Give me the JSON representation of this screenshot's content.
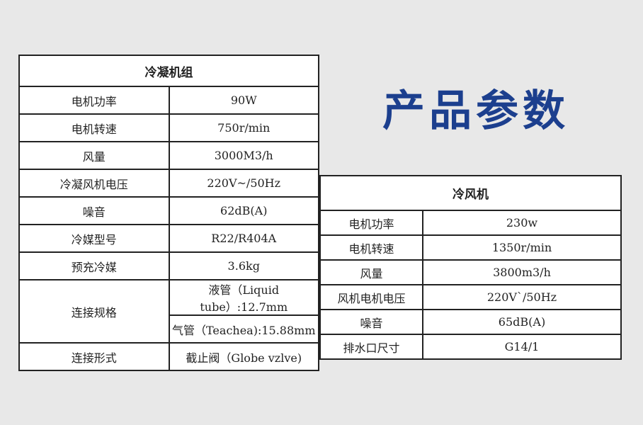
{
  "title": "产品参数",
  "condensing_unit": {
    "header": "冷凝机组",
    "rows": [
      {
        "label": "电机功率",
        "value": "90W"
      },
      {
        "label": "电机转速",
        "value": "750r/min"
      },
      {
        "label": "风量",
        "value": "3000M3/h"
      },
      {
        "label": "冷凝风机电压",
        "value": "220V~/50Hz"
      },
      {
        "label": "噪音",
        "value": "62dB(A)"
      },
      {
        "label": "冷媒型号",
        "value": "R22/R404A"
      },
      {
        "label": "预充冷媒",
        "value": "3.6kg"
      }
    ],
    "connection": {
      "label": "连接规格",
      "liquid": "液管（Liquid tube）:12.7mm",
      "gas": "气管（Teachea):15.88mm"
    },
    "connection_type": {
      "label": "连接形式",
      "value": "截止阀（Globe vzlve)"
    }
  },
  "air_cooler": {
    "header": "冷风机",
    "rows": [
      {
        "label": "电机功率",
        "value": "230w"
      },
      {
        "label": "电机转速",
        "value": "1350r/min"
      },
      {
        "label": "风量",
        "value": "3800m3/h"
      },
      {
        "label": "风机电机电压",
        "value": "220V`/50Hz"
      },
      {
        "label": "噪音",
        "value": "65dB(A)"
      },
      {
        "label": "排水口尺寸",
        "value": "G14/1"
      }
    ]
  }
}
